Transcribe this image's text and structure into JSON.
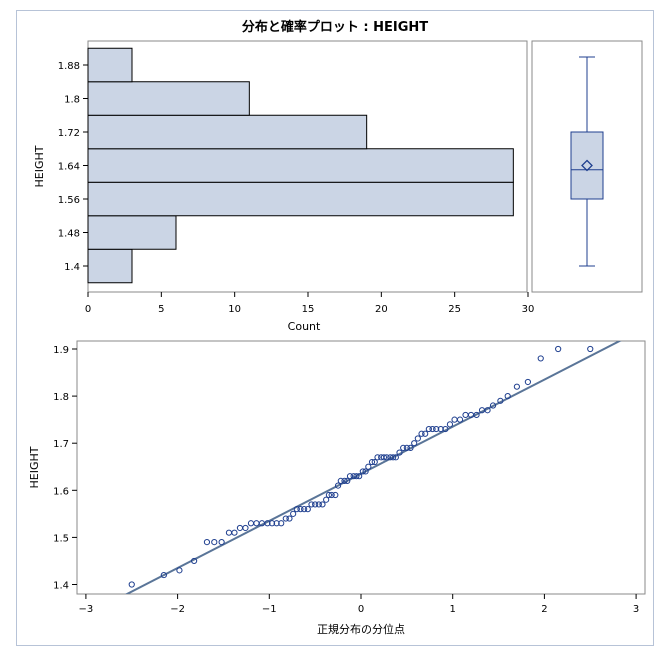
{
  "title": "分布と確率プロット : HEIGHT",
  "colors": {
    "bar_fill": "#cbd5e5",
    "bar_stroke": "#000000",
    "panel_border": "#8a8a8a",
    "frame_border": "#b7c3d7",
    "box_stroke": "#1f3f8f",
    "box_fill": "#cbd5e5",
    "marker": "#1f3f8f",
    "fit_line": "#5a7598"
  },
  "chart_data": [
    {
      "type": "bar",
      "orientation": "horizontal",
      "ylabel": "HEIGHT",
      "xlabel": "Count",
      "xlim": [
        0,
        30
      ],
      "xticks": [
        "0",
        "5",
        "10",
        "15",
        "20",
        "25",
        "30"
      ],
      "yticks": [
        "1.88",
        "1.8",
        "1.72",
        "1.64",
        "1.56",
        "1.48",
        "1.4"
      ],
      "categories": [
        1.4,
        1.48,
        1.56,
        1.64,
        1.72,
        1.8,
        1.88
      ],
      "values": [
        3,
        6,
        29,
        29,
        19,
        11,
        3
      ]
    },
    {
      "type": "box",
      "min": 1.4,
      "q1": 1.56,
      "median": 1.63,
      "q3": 1.72,
      "max": 1.9,
      "mean": 1.64
    },
    {
      "type": "scatter",
      "xlabel": "正規分布の分位点",
      "ylabel": "HEIGHT",
      "xlim": [
        -3,
        3
      ],
      "ylim": [
        1.39,
        1.91
      ],
      "xticks": [
        "−3",
        "−2",
        "−1",
        "0",
        "1",
        "2",
        "3"
      ],
      "yticks": [
        "1.9",
        "1.8",
        "1.7",
        "1.6",
        "1.5",
        "1.4"
      ],
      "fit_line": {
        "intercept": 1.635,
        "slope": 0.1
      },
      "points": [
        [
          -2.5,
          1.4
        ],
        [
          -2.15,
          1.42
        ],
        [
          -1.98,
          1.43
        ],
        [
          -1.82,
          1.45
        ],
        [
          -1.68,
          1.49
        ],
        [
          -1.6,
          1.49
        ],
        [
          -1.52,
          1.49
        ],
        [
          -1.44,
          1.51
        ],
        [
          -1.38,
          1.51
        ],
        [
          -1.32,
          1.52
        ],
        [
          -1.26,
          1.52
        ],
        [
          -1.2,
          1.53
        ],
        [
          -1.14,
          1.53
        ],
        [
          -1.08,
          1.53
        ],
        [
          -1.02,
          1.53
        ],
        [
          -0.97,
          1.53
        ],
        [
          -0.92,
          1.53
        ],
        [
          -0.87,
          1.53
        ],
        [
          -0.82,
          1.54
        ],
        [
          -0.78,
          1.54
        ],
        [
          -0.74,
          1.55
        ],
        [
          -0.7,
          1.56
        ],
        [
          -0.66,
          1.56
        ],
        [
          -0.62,
          1.56
        ],
        [
          -0.58,
          1.56
        ],
        [
          -0.54,
          1.57
        ],
        [
          -0.5,
          1.57
        ],
        [
          -0.46,
          1.57
        ],
        [
          -0.42,
          1.57
        ],
        [
          -0.38,
          1.58
        ],
        [
          -0.35,
          1.59
        ],
        [
          -0.32,
          1.59
        ],
        [
          -0.28,
          1.59
        ],
        [
          -0.25,
          1.61
        ],
        [
          -0.22,
          1.62
        ],
        [
          -0.18,
          1.62
        ],
        [
          -0.15,
          1.62
        ],
        [
          -0.12,
          1.63
        ],
        [
          -0.08,
          1.63
        ],
        [
          -0.05,
          1.63
        ],
        [
          -0.02,
          1.63
        ],
        [
          0.02,
          1.64
        ],
        [
          0.05,
          1.64
        ],
        [
          0.08,
          1.65
        ],
        [
          0.12,
          1.66
        ],
        [
          0.15,
          1.66
        ],
        [
          0.18,
          1.67
        ],
        [
          0.22,
          1.67
        ],
        [
          0.25,
          1.67
        ],
        [
          0.28,
          1.67
        ],
        [
          0.32,
          1.67
        ],
        [
          0.35,
          1.67
        ],
        [
          0.38,
          1.67
        ],
        [
          0.42,
          1.68
        ],
        [
          0.46,
          1.69
        ],
        [
          0.5,
          1.69
        ],
        [
          0.54,
          1.69
        ],
        [
          0.58,
          1.7
        ],
        [
          0.62,
          1.71
        ],
        [
          0.66,
          1.72
        ],
        [
          0.7,
          1.72
        ],
        [
          0.74,
          1.73
        ],
        [
          0.78,
          1.73
        ],
        [
          0.82,
          1.73
        ],
        [
          0.87,
          1.73
        ],
        [
          0.92,
          1.73
        ],
        [
          0.97,
          1.74
        ],
        [
          1.02,
          1.75
        ],
        [
          1.08,
          1.75
        ],
        [
          1.14,
          1.76
        ],
        [
          1.2,
          1.76
        ],
        [
          1.26,
          1.76
        ],
        [
          1.32,
          1.77
        ],
        [
          1.38,
          1.77
        ],
        [
          1.44,
          1.78
        ],
        [
          1.52,
          1.79
        ],
        [
          1.6,
          1.8
        ],
        [
          1.7,
          1.82
        ],
        [
          1.82,
          1.83
        ],
        [
          1.96,
          1.88
        ],
        [
          2.15,
          1.9
        ],
        [
          2.5,
          1.9
        ]
      ]
    }
  ]
}
